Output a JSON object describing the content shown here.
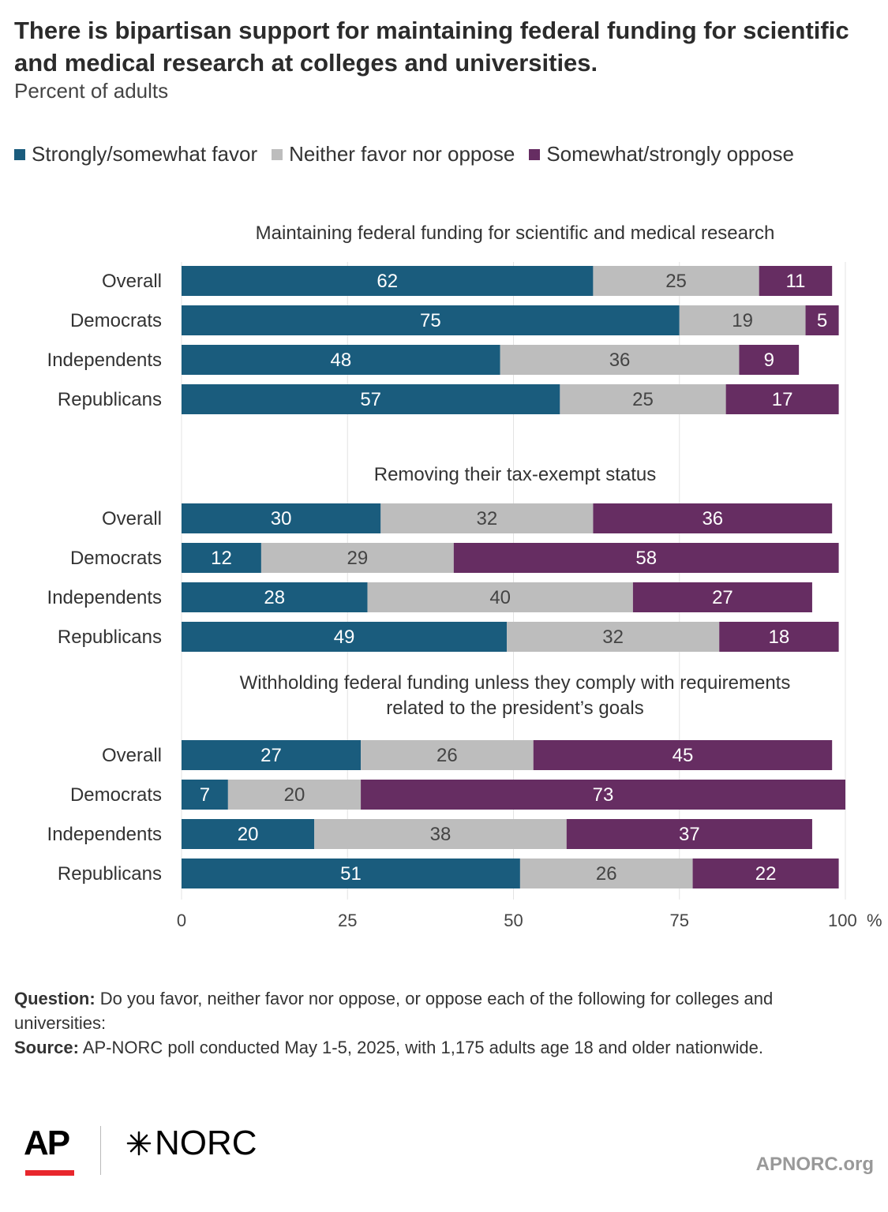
{
  "title": "There is bipartisan support for maintaining federal funding for scientific and medical research at colleges and universities.",
  "subtitle": "Percent of adults",
  "legend": [
    {
      "label": "Strongly/somewhat favor",
      "color": "#1a5c7d"
    },
    {
      "label": "Neither favor nor oppose",
      "color": "#bdbdbd"
    },
    {
      "label": "Somewhat/strongly oppose",
      "color": "#662d62"
    }
  ],
  "chart_data": {
    "type": "bar",
    "orientation": "horizontal",
    "stacked": true,
    "xlim": [
      0,
      100
    ],
    "x_ticks": [
      "0",
      "25",
      "50",
      "75",
      "100"
    ],
    "x_unit": "%",
    "grid": true,
    "series_names": [
      "Strongly/somewhat favor",
      "Neither favor nor oppose",
      "Somewhat/strongly oppose"
    ],
    "colors": [
      "#1a5c7d",
      "#bdbdbd",
      "#662d62"
    ],
    "panels": [
      {
        "title": [
          "Maintaining federal funding for scientific and medical research"
        ],
        "rows": [
          {
            "label": "Overall",
            "values": [
              62,
              25,
              11
            ]
          },
          {
            "label": "Democrats",
            "values": [
              75,
              19,
              5
            ]
          },
          {
            "label": "Independents",
            "values": [
              48,
              36,
              9
            ]
          },
          {
            "label": "Republicans",
            "values": [
              57,
              25,
              17
            ]
          }
        ]
      },
      {
        "title": [
          "Removing their tax-exempt status"
        ],
        "rows": [
          {
            "label": "Overall",
            "values": [
              30,
              32,
              36
            ]
          },
          {
            "label": "Democrats",
            "values": [
              12,
              29,
              58
            ]
          },
          {
            "label": "Independents",
            "values": [
              28,
              40,
              27
            ]
          },
          {
            "label": "Republicans",
            "values": [
              49,
              32,
              18
            ]
          }
        ]
      },
      {
        "title": [
          "Withholding federal funding unless they comply with requirements",
          "related to the president’s goals"
        ],
        "rows": [
          {
            "label": "Overall",
            "values": [
              27,
              26,
              45
            ]
          },
          {
            "label": "Democrats",
            "values": [
              7,
              20,
              73
            ]
          },
          {
            "label": "Independents",
            "values": [
              20,
              38,
              37
            ]
          },
          {
            "label": "Republicans",
            "values": [
              51,
              26,
              22
            ]
          }
        ]
      }
    ]
  },
  "footnote": {
    "question_label": "Question:",
    "question_text": "Do you favor, neither favor nor oppose, or oppose each of the following for colleges and universities:",
    "source_label": "Source:",
    "source_text": "AP-NORC poll conducted May 1-5, 2025, with 1,175 adults age 18 and older nationwide."
  },
  "logos": {
    "ap": "AP",
    "norc": "NORC",
    "site": "APNORC.org"
  }
}
